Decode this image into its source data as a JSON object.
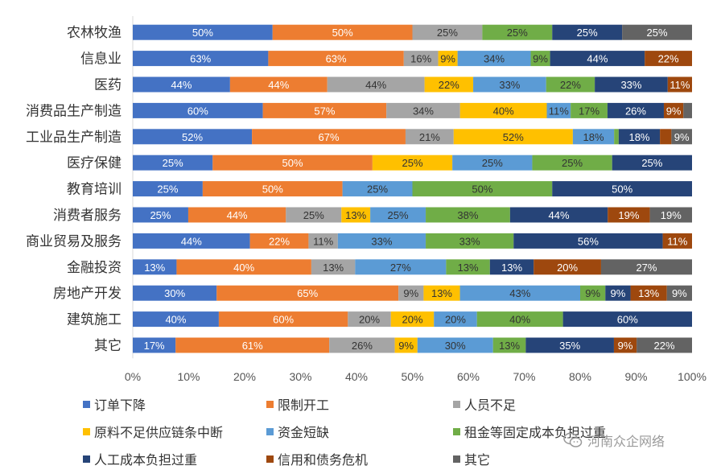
{
  "chart_data": {
    "type": "bar",
    "orientation": "horizontal",
    "stacked": "percent",
    "categories": [
      "农林牧渔",
      "信息业",
      "医药",
      "消费品生产制造",
      "工业品生产制造",
      "医疗保健",
      "教育培训",
      "消费者服务",
      "商业贸易及服务",
      "金融投资",
      "房地产开发",
      "建筑施工",
      "其它"
    ],
    "x_ticks": [
      "0%",
      "10%",
      "20%",
      "30%",
      "40%",
      "50%",
      "60%",
      "70%",
      "80%",
      "90%",
      "100%"
    ],
    "xlim": [
      0,
      100
    ],
    "legend_position": "bottom",
    "series": [
      {
        "name": "订单下降",
        "color": "#4472C4",
        "values": [
          50,
          63,
          44,
          60,
          52,
          25,
          25,
          25,
          44,
          13,
          30,
          40,
          17
        ],
        "labels": [
          "50%",
          "63%",
          "44%",
          "60%",
          "52%",
          "25%",
          "25%",
          "25%",
          "44%",
          "13%",
          "30%",
          "40%",
          "17%"
        ]
      },
      {
        "name": "限制开工",
        "color": "#ED7D31",
        "values": [
          50,
          63,
          44,
          57,
          67,
          50,
          50,
          44,
          22,
          40,
          65,
          60,
          61
        ],
        "labels": [
          "50%",
          "63%",
          "44%",
          "57%",
          "67%",
          "50%",
          "50%",
          "44%",
          "22%",
          "40%",
          "65%",
          "60%",
          "61%"
        ]
      },
      {
        "name": "人员不足",
        "color": "#A5A5A5",
        "values": [
          25,
          16,
          44,
          34,
          21,
          0,
          0,
          25,
          11,
          13,
          9,
          20,
          26
        ],
        "labels": [
          "25%",
          "16%",
          "44%",
          "34%",
          "21%",
          "",
          "",
          "25%",
          "11%",
          "13%",
          "9%",
          "20%",
          "26%"
        ]
      },
      {
        "name": "原料不足供应链条中断",
        "color": "#FFC000",
        "values": [
          0,
          9,
          22,
          40,
          52,
          25,
          0,
          13,
          0,
          0,
          13,
          20,
          9
        ],
        "labels": [
          "",
          "9%",
          "22%",
          "40%",
          "52%",
          "25%",
          "",
          "13%",
          "",
          "",
          "13%",
          "20%",
          "9%"
        ]
      },
      {
        "name": "资金短缺",
        "color": "#5B9BD5",
        "values": [
          0,
          34,
          33,
          11,
          18,
          25,
          25,
          25,
          33,
          27,
          43,
          20,
          30
        ],
        "labels": [
          "",
          "34%",
          "33%",
          "11%",
          "18%",
          "25%",
          "25%",
          "25%",
          "33%",
          "27%",
          "43%",
          "20%",
          "30%"
        ]
      },
      {
        "name": "租金等固定成本负担过重",
        "color": "#70AD47",
        "values": [
          25,
          9,
          22,
          17,
          2,
          25,
          50,
          38,
          33,
          13,
          9,
          40,
          13
        ],
        "labels": [
          "25%",
          "9%",
          "22%",
          "17%",
          "",
          "25%",
          "50%",
          "38%",
          "33%",
          "13%",
          "9%",
          "40%",
          "13%"
        ]
      },
      {
        "name": "人工成本负担过重",
        "color": "#264478",
        "values": [
          25,
          44,
          33,
          26,
          18,
          25,
          50,
          44,
          56,
          13,
          9,
          60,
          35
        ],
        "labels": [
          "25%",
          "44%",
          "33%",
          "26%",
          "18%",
          "25%",
          "50%",
          "44%",
          "56%",
          "13%",
          "9%",
          "60%",
          "35%"
        ]
      },
      {
        "name": "信用和债务危机",
        "color": "#9E480E",
        "values": [
          0,
          22,
          11,
          9,
          5,
          0,
          0,
          19,
          11,
          20,
          13,
          0,
          9
        ],
        "labels": [
          "",
          "22%",
          "11%",
          "9%",
          "",
          "",
          "",
          "19%",
          "11%",
          "20%",
          "13%",
          "",
          "9%"
        ]
      },
      {
        "name": "其它",
        "color": "#636363",
        "values": [
          25,
          0,
          0,
          4,
          9,
          0,
          0,
          19,
          0,
          27,
          9,
          0,
          22
        ],
        "labels": [
          "25%",
          "",
          "",
          "",
          "9%",
          "",
          "",
          "19%",
          "",
          "27%",
          "9%",
          "",
          "22%"
        ]
      }
    ]
  },
  "watermark": {
    "text": "河南众企网络",
    "icon": "wechat-icon"
  }
}
